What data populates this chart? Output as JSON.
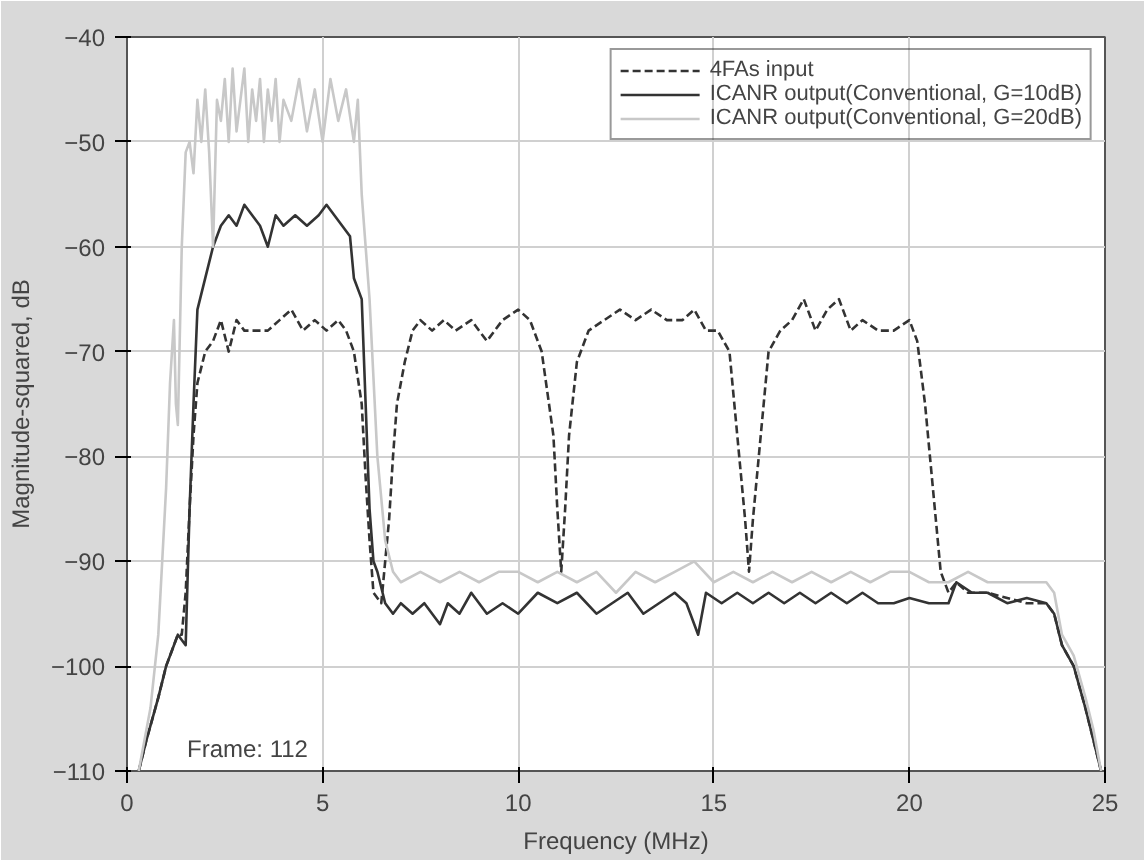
{
  "chart_data": {
    "type": "line",
    "xlabel": "Frequency (MHz)",
    "ylabel": "Magnitude-squared, dB",
    "xlim": [
      0,
      25
    ],
    "ylim": [
      -110,
      -40
    ],
    "xticks": [
      0,
      5,
      10,
      15,
      20,
      25
    ],
    "yticks": [
      -110,
      -100,
      -90,
      -80,
      -70,
      -60,
      -50,
      -40
    ],
    "grid": true,
    "legend": "top right",
    "marker": "none",
    "annotations": [
      "Frame: 112"
    ],
    "series": [
      {
        "name": "4FAs input",
        "color": "#333333",
        "line_style": "dashed",
        "x": [
          0.3,
          0.5,
          0.8,
          1.0,
          1.2,
          1.3,
          1.4,
          1.5,
          1.6,
          1.7,
          1.8,
          2.0,
          2.2,
          2.4,
          2.6,
          2.8,
          3.0,
          3.3,
          3.6,
          3.9,
          4.2,
          4.5,
          4.8,
          5.1,
          5.4,
          5.6,
          5.8,
          6.0,
          6.1,
          6.2,
          6.3,
          6.5,
          6.7,
          6.8,
          6.9,
          7.1,
          7.3,
          7.5,
          7.8,
          8.1,
          8.4,
          8.8,
          9.2,
          9.6,
          10.0,
          10.3,
          10.6,
          10.9,
          11.0,
          11.1,
          11.2,
          11.3,
          11.5,
          11.8,
          12.2,
          12.6,
          13.0,
          13.4,
          13.8,
          14.2,
          14.5,
          14.8,
          15.1,
          15.4,
          15.6,
          15.8,
          15.9,
          16.0,
          16.2,
          16.4,
          16.7,
          17.0,
          17.3,
          17.6,
          17.9,
          18.2,
          18.5,
          18.8,
          19.2,
          19.6,
          20.0,
          20.2,
          20.4,
          20.6,
          20.8,
          21.0,
          21.2,
          21.5,
          22.0,
          22.5,
          23.0,
          23.5,
          23.7,
          23.9,
          24.2,
          24.5,
          24.7,
          24.9
        ],
        "values": [
          -110,
          -107,
          -103,
          -100,
          -98,
          -97,
          -97,
          -93,
          -85,
          -78,
          -73,
          -70,
          -69,
          -67,
          -70,
          -67,
          -68,
          -68,
          -68,
          -67,
          -66,
          -68,
          -67,
          -68,
          -67,
          -68,
          -70,
          -75,
          -82,
          -88,
          -93,
          -94,
          -86,
          -80,
          -75,
          -71,
          -68,
          -67,
          -68,
          -67,
          -68,
          -67,
          -69,
          -67,
          -66,
          -67,
          -70,
          -78,
          -85,
          -91,
          -85,
          -78,
          -71,
          -68,
          -67,
          -66,
          -67,
          -66,
          -67,
          -67,
          -66,
          -68,
          -68,
          -70,
          -78,
          -86,
          -91,
          -86,
          -78,
          -70,
          -68,
          -67,
          -65,
          -68,
          -66,
          -65,
          -68,
          -67,
          -68,
          -68,
          -67,
          -69,
          -75,
          -83,
          -91,
          -93,
          -92,
          -93,
          -93,
          -93.5,
          -94,
          -94,
          -95,
          -98,
          -100,
          -104,
          -107,
          -110
        ]
      },
      {
        "name": "ICANR output(Conventional, G=10dB)",
        "color": "#333333",
        "line_style": "solid",
        "x": [
          0.3,
          0.5,
          0.8,
          1.0,
          1.2,
          1.3,
          1.5,
          1.6,
          1.7,
          1.8,
          2.0,
          2.2,
          2.4,
          2.6,
          2.8,
          3.0,
          3.2,
          3.4,
          3.6,
          3.8,
          4.0,
          4.3,
          4.6,
          4.9,
          5.1,
          5.3,
          5.5,
          5.7,
          5.8,
          6.0,
          6.1,
          6.2,
          6.3,
          6.4,
          6.6,
          6.8,
          7.0,
          7.3,
          7.6,
          8.0,
          8.2,
          8.5,
          8.8,
          9.2,
          9.6,
          10.0,
          10.5,
          11.0,
          11.5,
          12.0,
          12.4,
          12.8,
          13.2,
          13.6,
          14.0,
          14.3,
          14.6,
          14.8,
          15.2,
          15.6,
          16.0,
          16.4,
          16.8,
          17.2,
          17.6,
          18.0,
          18.4,
          18.8,
          19.2,
          19.6,
          20.0,
          20.5,
          21.0,
          21.2,
          21.6,
          22.0,
          22.5,
          23.0,
          23.5,
          23.7,
          23.9,
          24.2,
          24.5,
          24.7,
          24.9
        ],
        "values": [
          -110,
          -107,
          -103,
          -100,
          -98,
          -97,
          -98,
          -85,
          -75,
          -66,
          -63,
          -60,
          -58,
          -57,
          -58,
          -56,
          -57,
          -58,
          -60,
          -57,
          -58,
          -57,
          -58,
          -57,
          -56,
          -57,
          -58,
          -59,
          -63,
          -65,
          -75,
          -85,
          -90,
          -91,
          -94,
          -95,
          -94,
          -95,
          -94,
          -96,
          -94,
          -95,
          -93,
          -95,
          -94,
          -95,
          -93,
          -94,
          -93,
          -95,
          -94,
          -93,
          -95,
          -94,
          -93,
          -94,
          -97,
          -93,
          -94,
          -93,
          -94,
          -93,
          -94,
          -93,
          -94,
          -93,
          -94,
          -93,
          -94,
          -94,
          -93.5,
          -94,
          -94,
          -92,
          -93,
          -93,
          -94,
          -93.5,
          -94,
          -95,
          -98,
          -100,
          -104,
          -107,
          -110
        ]
      },
      {
        "name": "ICANR output(Conventional, G=20dB)",
        "color": "#c8c8c8",
        "line_style": "solid",
        "x": [
          0.3,
          0.6,
          0.8,
          0.9,
          1.0,
          1.1,
          1.2,
          1.25,
          1.3,
          1.4,
          1.5,
          1.6,
          1.7,
          1.8,
          1.9,
          2.0,
          2.1,
          2.2,
          2.3,
          2.4,
          2.5,
          2.6,
          2.7,
          2.8,
          2.9,
          3.0,
          3.1,
          3.2,
          3.3,
          3.4,
          3.5,
          3.6,
          3.7,
          3.8,
          3.9,
          4.0,
          4.2,
          4.4,
          4.6,
          4.8,
          5.0,
          5.2,
          5.4,
          5.6,
          5.8,
          5.9,
          6.0,
          6.2,
          6.4,
          6.6,
          6.8,
          7.0,
          7.5,
          8.0,
          8.5,
          9.0,
          9.5,
          10.0,
          10.5,
          11.0,
          11.5,
          12.0,
          12.5,
          13.0,
          13.5,
          14.0,
          14.5,
          15.0,
          15.5,
          16.0,
          16.5,
          17.0,
          17.5,
          18.0,
          18.5,
          19.0,
          19.5,
          20.0,
          20.5,
          21.0,
          21.5,
          22.0,
          22.5,
          23.0,
          23.5,
          23.7,
          23.9,
          24.2,
          24.5,
          24.7,
          24.9
        ],
        "values": [
          -110,
          -104,
          -97,
          -90,
          -83,
          -73,
          -67,
          -75,
          -77,
          -60,
          -51,
          -50,
          -53,
          -46,
          -50,
          -45,
          -51,
          -60,
          -46,
          -48,
          -44,
          -50,
          -43,
          -49,
          -46,
          -43,
          -50,
          -45,
          -48,
          -44,
          -50,
          -45,
          -48,
          -44,
          -50,
          -46,
          -48,
          -44,
          -49,
          -45,
          -50,
          -44,
          -48,
          -45,
          -50,
          -46,
          -55,
          -65,
          -80,
          -88,
          -91,
          -92,
          -91,
          -92,
          -91,
          -92,
          -91,
          -91,
          -92,
          -91,
          -92,
          -91,
          -93,
          -91,
          -92,
          -91,
          -90,
          -92,
          -91,
          -92,
          -91,
          -92,
          -91,
          -92,
          -91,
          -92,
          -91,
          -91,
          -92,
          -92,
          -91,
          -92,
          -92,
          -92,
          -92,
          -93,
          -97,
          -99,
          -103,
          -106,
          -110
        ]
      }
    ]
  }
}
